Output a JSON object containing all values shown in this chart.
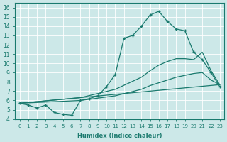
{
  "xlabel": "Humidex (Indice chaleur)",
  "bg_color": "#cce8e8",
  "line_color": "#1a7a6e",
  "grid_color": "#ffffff",
  "xlim": [
    -0.5,
    23.5
  ],
  "ylim": [
    4,
    16.5
  ],
  "xticks": [
    0,
    1,
    2,
    3,
    4,
    5,
    6,
    7,
    8,
    9,
    10,
    11,
    12,
    13,
    14,
    15,
    16,
    17,
    18,
    19,
    20,
    21,
    22,
    23
  ],
  "yticks": [
    4,
    5,
    6,
    7,
    8,
    9,
    10,
    11,
    12,
    13,
    14,
    15,
    16
  ],
  "line1_x": [
    0,
    1,
    2,
    3,
    4,
    5,
    6,
    7,
    8,
    9,
    10,
    11,
    12,
    13,
    14,
    15,
    16,
    17,
    18,
    19,
    20,
    21,
    22,
    23
  ],
  "line1_y": [
    5.7,
    5.5,
    5.2,
    5.5,
    4.7,
    4.5,
    4.4,
    6.0,
    6.2,
    6.5,
    7.5,
    8.8,
    12.7,
    13.0,
    14.0,
    15.2,
    15.6,
    14.5,
    13.7,
    13.5,
    11.2,
    10.4,
    9.0,
    7.5
  ],
  "line2_x": [
    0,
    23
  ],
  "line2_y": [
    5.7,
    7.7
  ],
  "line3_x": [
    0,
    7,
    11,
    14,
    15,
    16,
    17,
    18,
    19,
    20,
    21,
    22,
    23
  ],
  "line3_y": [
    5.7,
    6.0,
    6.5,
    7.2,
    7.6,
    7.9,
    8.2,
    8.5,
    8.7,
    8.9,
    9.0,
    8.2,
    7.7
  ],
  "line4_x": [
    0,
    7,
    11,
    14,
    15,
    16,
    17,
    18,
    19,
    20,
    21,
    22,
    23
  ],
  "line4_y": [
    5.7,
    6.3,
    7.2,
    8.5,
    9.2,
    9.8,
    10.2,
    10.5,
    10.5,
    10.4,
    11.2,
    9.2,
    7.7
  ]
}
